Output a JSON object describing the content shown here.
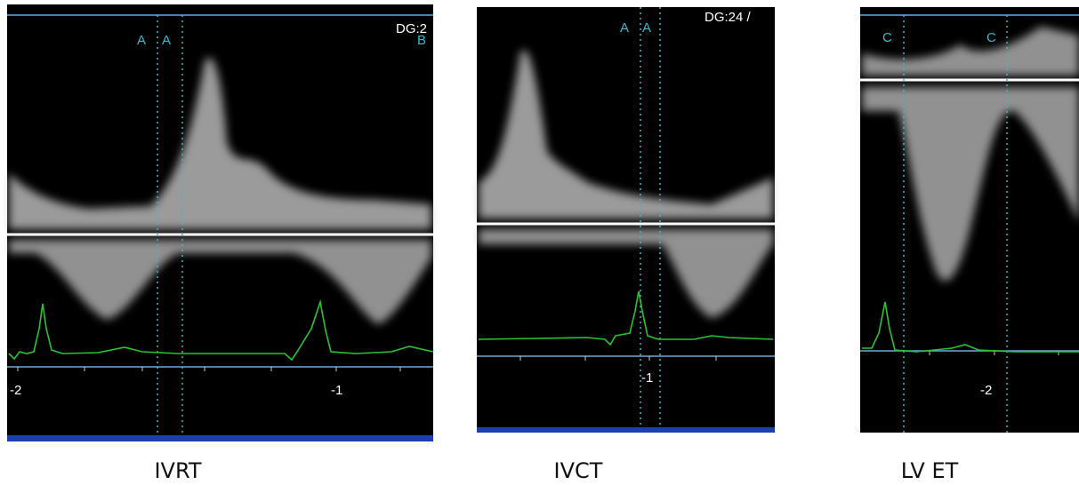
{
  "panels": [
    {
      "label": "IVRT",
      "markers": [
        "A",
        "A",
        "B"
      ],
      "depth": "DG:2",
      "axis_labels": [
        "-2",
        "-1"
      ]
    },
    {
      "label": "IVCT",
      "markers": [
        "A",
        "A"
      ],
      "depth": "DG:24 /",
      "axis_labels": [
        "-1"
      ]
    },
    {
      "label": "LV ET",
      "markers": [
        "C",
        "C"
      ],
      "axis_labels": [
        "-2"
      ]
    }
  ]
}
